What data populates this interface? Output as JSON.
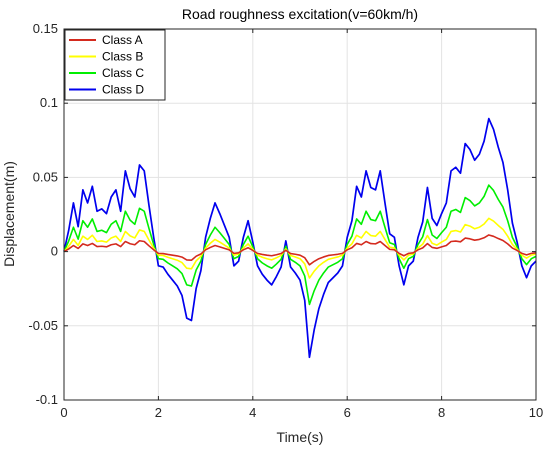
{
  "chart_data": {
    "type": "line",
    "title": "Road roughness excitation(v=60km/h)",
    "xlabel": "Time(s)",
    "ylabel": "Displacement(m)",
    "xlim": [
      0,
      10
    ],
    "ylim": [
      -0.1,
      0.15
    ],
    "xticks": [
      0,
      2,
      4,
      6,
      8,
      10
    ],
    "yticks": [
      -0.1,
      -0.05,
      0,
      0.05,
      0.1,
      0.15
    ],
    "xtick_labels": [
      "0",
      "2",
      "4",
      "6",
      "8",
      "10"
    ],
    "ytick_labels": [
      "-0.1",
      "-0.05",
      "0",
      "0.05",
      "0.1",
      "0.15"
    ],
    "grid": true,
    "legend_position": "top-left",
    "x": [
      0,
      0.1,
      0.2,
      0.3,
      0.4,
      0.5,
      0.6,
      0.7,
      0.8,
      0.9,
      1.0,
      1.1,
      1.2,
      1.3,
      1.4,
      1.5,
      1.6,
      1.7,
      1.8,
      1.9,
      2.0,
      2.1,
      2.2,
      2.3,
      2.4,
      2.5,
      2.6,
      2.7,
      2.8,
      2.9,
      3.0,
      3.1,
      3.2,
      3.3,
      3.4,
      3.5,
      3.6,
      3.7,
      3.8,
      3.9,
      4.0,
      4.1,
      4.2,
      4.3,
      4.4,
      4.5,
      4.6,
      4.7,
      4.8,
      4.9,
      5.0,
      5.1,
      5.2,
      5.3,
      5.4,
      5.5,
      5.6,
      5.7,
      5.8,
      5.9,
      6.0,
      6.1,
      6.2,
      6.3,
      6.4,
      6.5,
      6.6,
      6.7,
      6.8,
      6.9,
      7.0,
      7.1,
      7.2,
      7.3,
      7.4,
      7.5,
      7.6,
      7.7,
      7.8,
      7.9,
      8.0,
      8.1,
      8.2,
      8.3,
      8.4,
      8.5,
      8.6,
      8.7,
      8.8,
      8.9,
      9.0,
      9.1,
      9.2,
      9.3,
      9.4,
      9.5,
      9.6,
      9.7,
      9.8,
      9.9,
      10.0
    ],
    "series": [
      {
        "name": "Class A",
        "color": "#d42a1e",
        "values": [
          0,
          0.0018,
          0.0041,
          0.0021,
          0.0052,
          0.0041,
          0.0055,
          0.0034,
          0.0036,
          0.0032,
          0.0046,
          0.0052,
          0.0034,
          0.0068,
          0.0053,
          0.0046,
          0.0073,
          0.0068,
          0.0039,
          0.0012,
          -0.0012,
          -0.0013,
          -0.0019,
          -0.0024,
          -0.0029,
          -0.0037,
          -0.0056,
          -0.0058,
          -0.0031,
          -0.0016,
          0.0012,
          0.0028,
          0.0041,
          0.0032,
          0.0022,
          0.0012,
          -0.0012,
          -0.0008,
          0.0012,
          0.0026,
          0.0008,
          -0.0012,
          -0.0019,
          -0.0024,
          -0.0028,
          -0.0021,
          -0.0013,
          0.0009,
          -0.0013,
          -0.0018,
          -0.0024,
          -0.0041,
          -0.0089,
          -0.0066,
          -0.0048,
          -0.0036,
          -0.0026,
          -0.0022,
          -0.0018,
          -0.0012,
          0.0012,
          0.0026,
          0.0055,
          0.0046,
          0.0068,
          0.0054,
          0.0052,
          0.0068,
          0.0041,
          0.0015,
          0.0012,
          -0.0012,
          -0.0028,
          -0.0012,
          -0.0008,
          0.0012,
          0.0025,
          0.0054,
          0.0028,
          0.0022,
          0.0032,
          0.0041,
          0.0068,
          0.0071,
          0.0066,
          0.0091,
          0.0086,
          0.0077,
          0.0082,
          0.0093,
          0.0112,
          0.0103,
          0.0088,
          0.0075,
          0.0052,
          0.0024,
          0.0008,
          -0.0012,
          -0.0022,
          -0.0012,
          -0.0008
        ]
      },
      {
        "name": "Class B",
        "color": "#ffff00",
        "values": [
          0,
          0.0036,
          0.0082,
          0.0042,
          0.0104,
          0.0082,
          0.011,
          0.0068,
          0.0072,
          0.0064,
          0.0092,
          0.0104,
          0.0068,
          0.0136,
          0.0106,
          0.0092,
          0.0146,
          0.0136,
          0.0078,
          0.0024,
          -0.0024,
          -0.0026,
          -0.0038,
          -0.0048,
          -0.0058,
          -0.0074,
          -0.0112,
          -0.0116,
          -0.0062,
          -0.0032,
          0.0024,
          0.0056,
          0.0082,
          0.0064,
          0.0044,
          0.0024,
          -0.0024,
          -0.0016,
          0.0024,
          0.0052,
          0.0016,
          -0.0024,
          -0.0038,
          -0.0048,
          -0.0056,
          -0.0042,
          -0.0026,
          0.0018,
          -0.0026,
          -0.0036,
          -0.0048,
          -0.0082,
          -0.0178,
          -0.0132,
          -0.0096,
          -0.0072,
          -0.0052,
          -0.0044,
          -0.0036,
          -0.0024,
          0.0024,
          0.0052,
          0.011,
          0.0092,
          0.0136,
          0.0108,
          0.0104,
          0.0136,
          0.0082,
          0.003,
          0.0024,
          -0.0024,
          -0.0056,
          -0.0024,
          -0.0016,
          0.0024,
          0.005,
          0.0108,
          0.0056,
          0.0044,
          0.0064,
          0.0082,
          0.0136,
          0.0142,
          0.0132,
          0.0182,
          0.0172,
          0.0154,
          0.0164,
          0.0186,
          0.0224,
          0.0206,
          0.0176,
          0.015,
          0.0104,
          0.0048,
          0.0016,
          -0.0024,
          -0.0044,
          -0.0024,
          -0.0016
        ]
      },
      {
        "name": "Class C",
        "color": "#00ee00",
        "values": [
          0,
          0.0072,
          0.0164,
          0.0084,
          0.0208,
          0.0164,
          0.022,
          0.0136,
          0.0144,
          0.0128,
          0.0184,
          0.0208,
          0.0136,
          0.0272,
          0.0212,
          0.0184,
          0.0292,
          0.0272,
          0.0156,
          0.0048,
          -0.0048,
          -0.0052,
          -0.0076,
          -0.0096,
          -0.0116,
          -0.0148,
          -0.0224,
          -0.0232,
          -0.0124,
          -0.0064,
          0.0048,
          0.0112,
          0.0164,
          0.0128,
          0.0088,
          0.0048,
          -0.0048,
          -0.0032,
          0.0048,
          0.0104,
          0.0032,
          -0.0048,
          -0.0076,
          -0.0096,
          -0.0112,
          -0.0084,
          -0.0052,
          0.0036,
          -0.0052,
          -0.0072,
          -0.0096,
          -0.0164,
          -0.0356,
          -0.0264,
          -0.0192,
          -0.0144,
          -0.0104,
          -0.0088,
          -0.0072,
          -0.0048,
          0.0048,
          0.0104,
          0.022,
          0.0184,
          0.0272,
          0.0216,
          0.0208,
          0.0272,
          0.0164,
          0.006,
          0.0048,
          -0.0048,
          -0.0112,
          -0.0048,
          -0.0032,
          0.0048,
          0.01,
          0.0216,
          0.0112,
          0.0088,
          0.0128,
          0.0164,
          0.0272,
          0.0284,
          0.0264,
          0.0364,
          0.0344,
          0.0308,
          0.0328,
          0.0372,
          0.0448,
          0.0412,
          0.0352,
          0.03,
          0.0208,
          0.0096,
          0.0032,
          -0.0048,
          -0.0088,
          -0.0048,
          -0.0032
        ]
      },
      {
        "name": "Class D",
        "color": "#0000ee",
        "values": [
          0,
          0.0144,
          0.0328,
          0.0168,
          0.0416,
          0.0328,
          0.044,
          0.0272,
          0.0288,
          0.0256,
          0.0368,
          0.0416,
          0.0272,
          0.0544,
          0.0424,
          0.0368,
          0.0584,
          0.0544,
          0.0312,
          0.0096,
          -0.0096,
          -0.0104,
          -0.0152,
          -0.0192,
          -0.0232,
          -0.0296,
          -0.0448,
          -0.0464,
          -0.0248,
          -0.0128,
          0.0096,
          0.0224,
          0.0328,
          0.0256,
          0.0176,
          0.0096,
          -0.0096,
          -0.0064,
          0.0096,
          0.0208,
          0.0064,
          -0.0096,
          -0.0152,
          -0.0192,
          -0.0224,
          -0.0168,
          -0.0104,
          0.0072,
          -0.0104,
          -0.0144,
          -0.0192,
          -0.0328,
          -0.0712,
          -0.0528,
          -0.0384,
          -0.0288,
          -0.0208,
          -0.0176,
          -0.0144,
          -0.0096,
          0.0096,
          0.0208,
          0.044,
          0.0368,
          0.0544,
          0.0432,
          0.0416,
          0.0544,
          0.0328,
          0.012,
          0.0096,
          -0.0096,
          -0.0224,
          -0.0096,
          -0.0064,
          0.0096,
          0.02,
          0.0432,
          0.0224,
          0.0176,
          0.0256,
          0.0328,
          0.0544,
          0.0568,
          0.0528,
          0.0728,
          0.0688,
          0.0616,
          0.0656,
          0.0744,
          0.0896,
          0.0824,
          0.0704,
          0.06,
          0.0416,
          0.0192,
          0.0064,
          -0.0096,
          -0.0176,
          -0.0096,
          -0.0064
        ]
      }
    ]
  }
}
